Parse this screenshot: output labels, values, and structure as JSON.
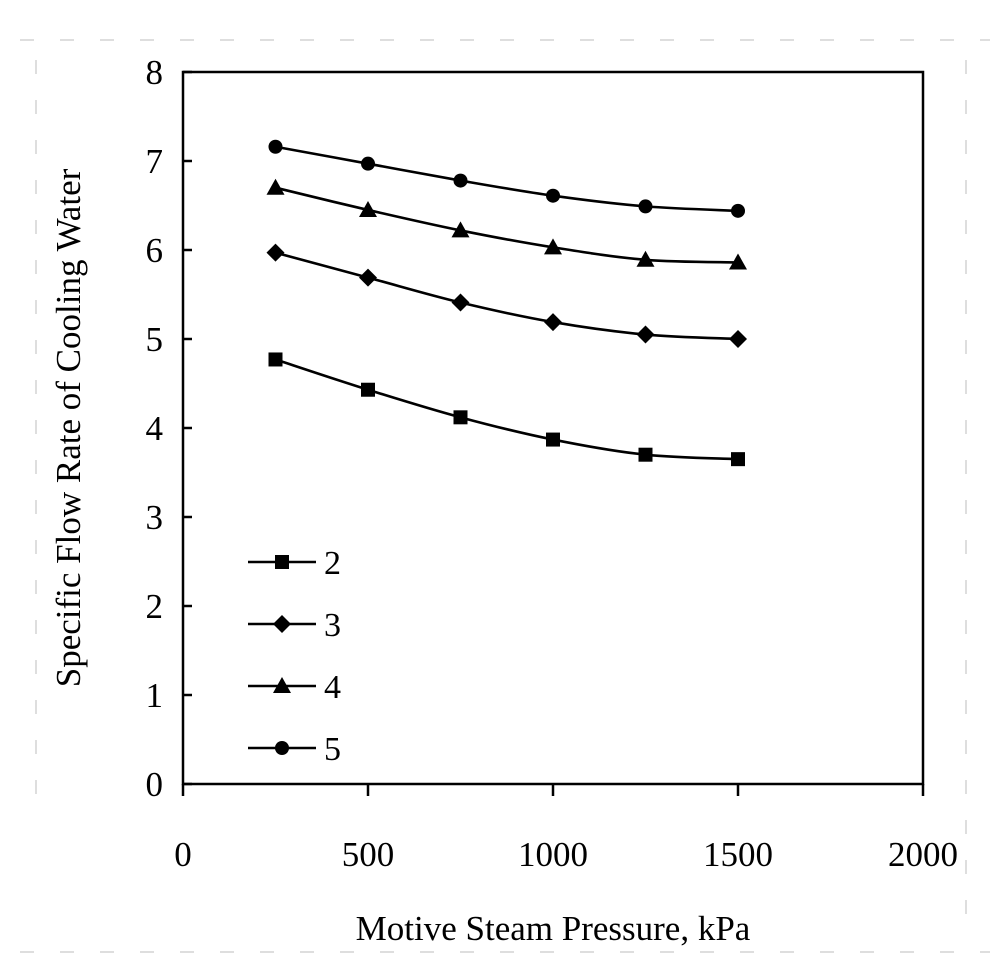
{
  "chart_data": {
    "type": "line",
    "title": "",
    "xlabel": "Motive Steam Pressure, kPa",
    "ylabel": "Specific Flow Rate of Cooling Water",
    "xlim": [
      0,
      2000
    ],
    "ylim": [
      0,
      8
    ],
    "x_ticks": [
      "0",
      "500",
      "1000",
      "1500",
      "2000"
    ],
    "y_ticks": [
      "0",
      "1",
      "2",
      "3",
      "4",
      "5",
      "6",
      "7",
      "8"
    ],
    "grid": false,
    "legend_position": "bottom-left",
    "x": [
      250,
      500,
      750,
      1000,
      1250,
      1500
    ],
    "series": [
      {
        "name": "2",
        "marker": "square",
        "values": [
          4.77,
          4.43,
          4.12,
          3.87,
          3.7,
          3.65
        ]
      },
      {
        "name": "3",
        "marker": "diamond",
        "values": [
          5.97,
          5.69,
          5.41,
          5.19,
          5.05,
          5.0
        ]
      },
      {
        "name": "4",
        "marker": "triangle",
        "values": [
          6.7,
          6.45,
          6.22,
          6.03,
          5.89,
          5.86
        ]
      },
      {
        "name": "5",
        "marker": "circle",
        "values": [
          7.16,
          6.97,
          6.78,
          6.61,
          6.49,
          6.44
        ]
      }
    ]
  }
}
